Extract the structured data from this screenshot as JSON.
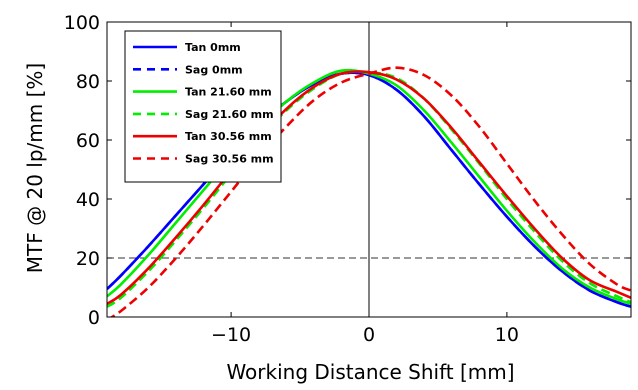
{
  "chart_data": {
    "type": "line",
    "xlabel": "Working Distance Shift [mm]",
    "ylabel": "MTF @ 20 lp/mm [%]",
    "xlim": [
      -19,
      19
    ],
    "ylim": [
      0,
      100
    ],
    "xticks": [
      -10,
      0,
      10
    ],
    "yticks": [
      0,
      20,
      40,
      60,
      80,
      100
    ],
    "grid": false,
    "legend_position": "top-left",
    "reference_lines": [
      {
        "orientation": "horizontal",
        "value": 20,
        "style": "dashed",
        "color": "#333333"
      },
      {
        "orientation": "vertical",
        "value": 0,
        "style": "solid",
        "color": "#000000"
      }
    ],
    "x": [
      -19,
      -18,
      -16,
      -14,
      -12,
      -10,
      -8,
      -6,
      -4,
      -2,
      0,
      2,
      4,
      6,
      8,
      10,
      12,
      14,
      16,
      18,
      19
    ],
    "series": [
      {
        "name": "Tan 0mm",
        "color": "#0000ff",
        "dash": "solid",
        "values": [
          9.5,
          14,
          24,
          34.5,
          45,
          55.5,
          65,
          73,
          79,
          82.5,
          82,
          77,
          68,
          56.5,
          45,
          34,
          24,
          15.5,
          9,
          5,
          3.5
        ]
      },
      {
        "name": "Sag 0mm",
        "color": "#0000ff",
        "dash": "dashed",
        "values": [
          9.5,
          14,
          24,
          34.5,
          45,
          55.5,
          65,
          73,
          79,
          82.5,
          82,
          77,
          68,
          56.5,
          45,
          34,
          24,
          15.5,
          9,
          5,
          3.5
        ]
      },
      {
        "name": "Tan 21.60 mm",
        "color": "#00ee00",
        "dash": "solid",
        "values": [
          7,
          11,
          21,
          32,
          43,
          54,
          64,
          73,
          79.5,
          83.5,
          82.5,
          78.5,
          70,
          59,
          47.5,
          36,
          25.5,
          16.5,
          10,
          6,
          4.5
        ]
      },
      {
        "name": "Sag 21.60 mm",
        "color": "#00ee00",
        "dash": "dashed",
        "values": [
          3.5,
          6.5,
          15.5,
          26,
          37,
          48.5,
          60,
          70,
          77.5,
          82.5,
          83,
          81,
          74,
          63.5,
          52,
          40,
          29,
          19,
          11.5,
          7,
          5
        ]
      },
      {
        "name": "Tan 30.56 mm",
        "color": "#ee0000",
        "dash": "solid",
        "values": [
          4.5,
          7.5,
          16.5,
          27,
          38,
          49.5,
          60.5,
          70.5,
          78,
          82.5,
          83,
          80.5,
          74,
          64,
          52.5,
          41,
          30,
          20,
          12.5,
          8.5,
          6.5
        ]
      },
      {
        "name": "Sag 30.56 mm",
        "color": "#ee0000",
        "dash": "dashed",
        "values": [
          -1,
          2,
          10,
          20,
          31,
          42.5,
          54,
          64.5,
          73.5,
          79.5,
          82.5,
          84.5,
          82,
          75,
          64.5,
          52,
          39.5,
          28,
          18,
          11,
          9
        ]
      }
    ]
  }
}
